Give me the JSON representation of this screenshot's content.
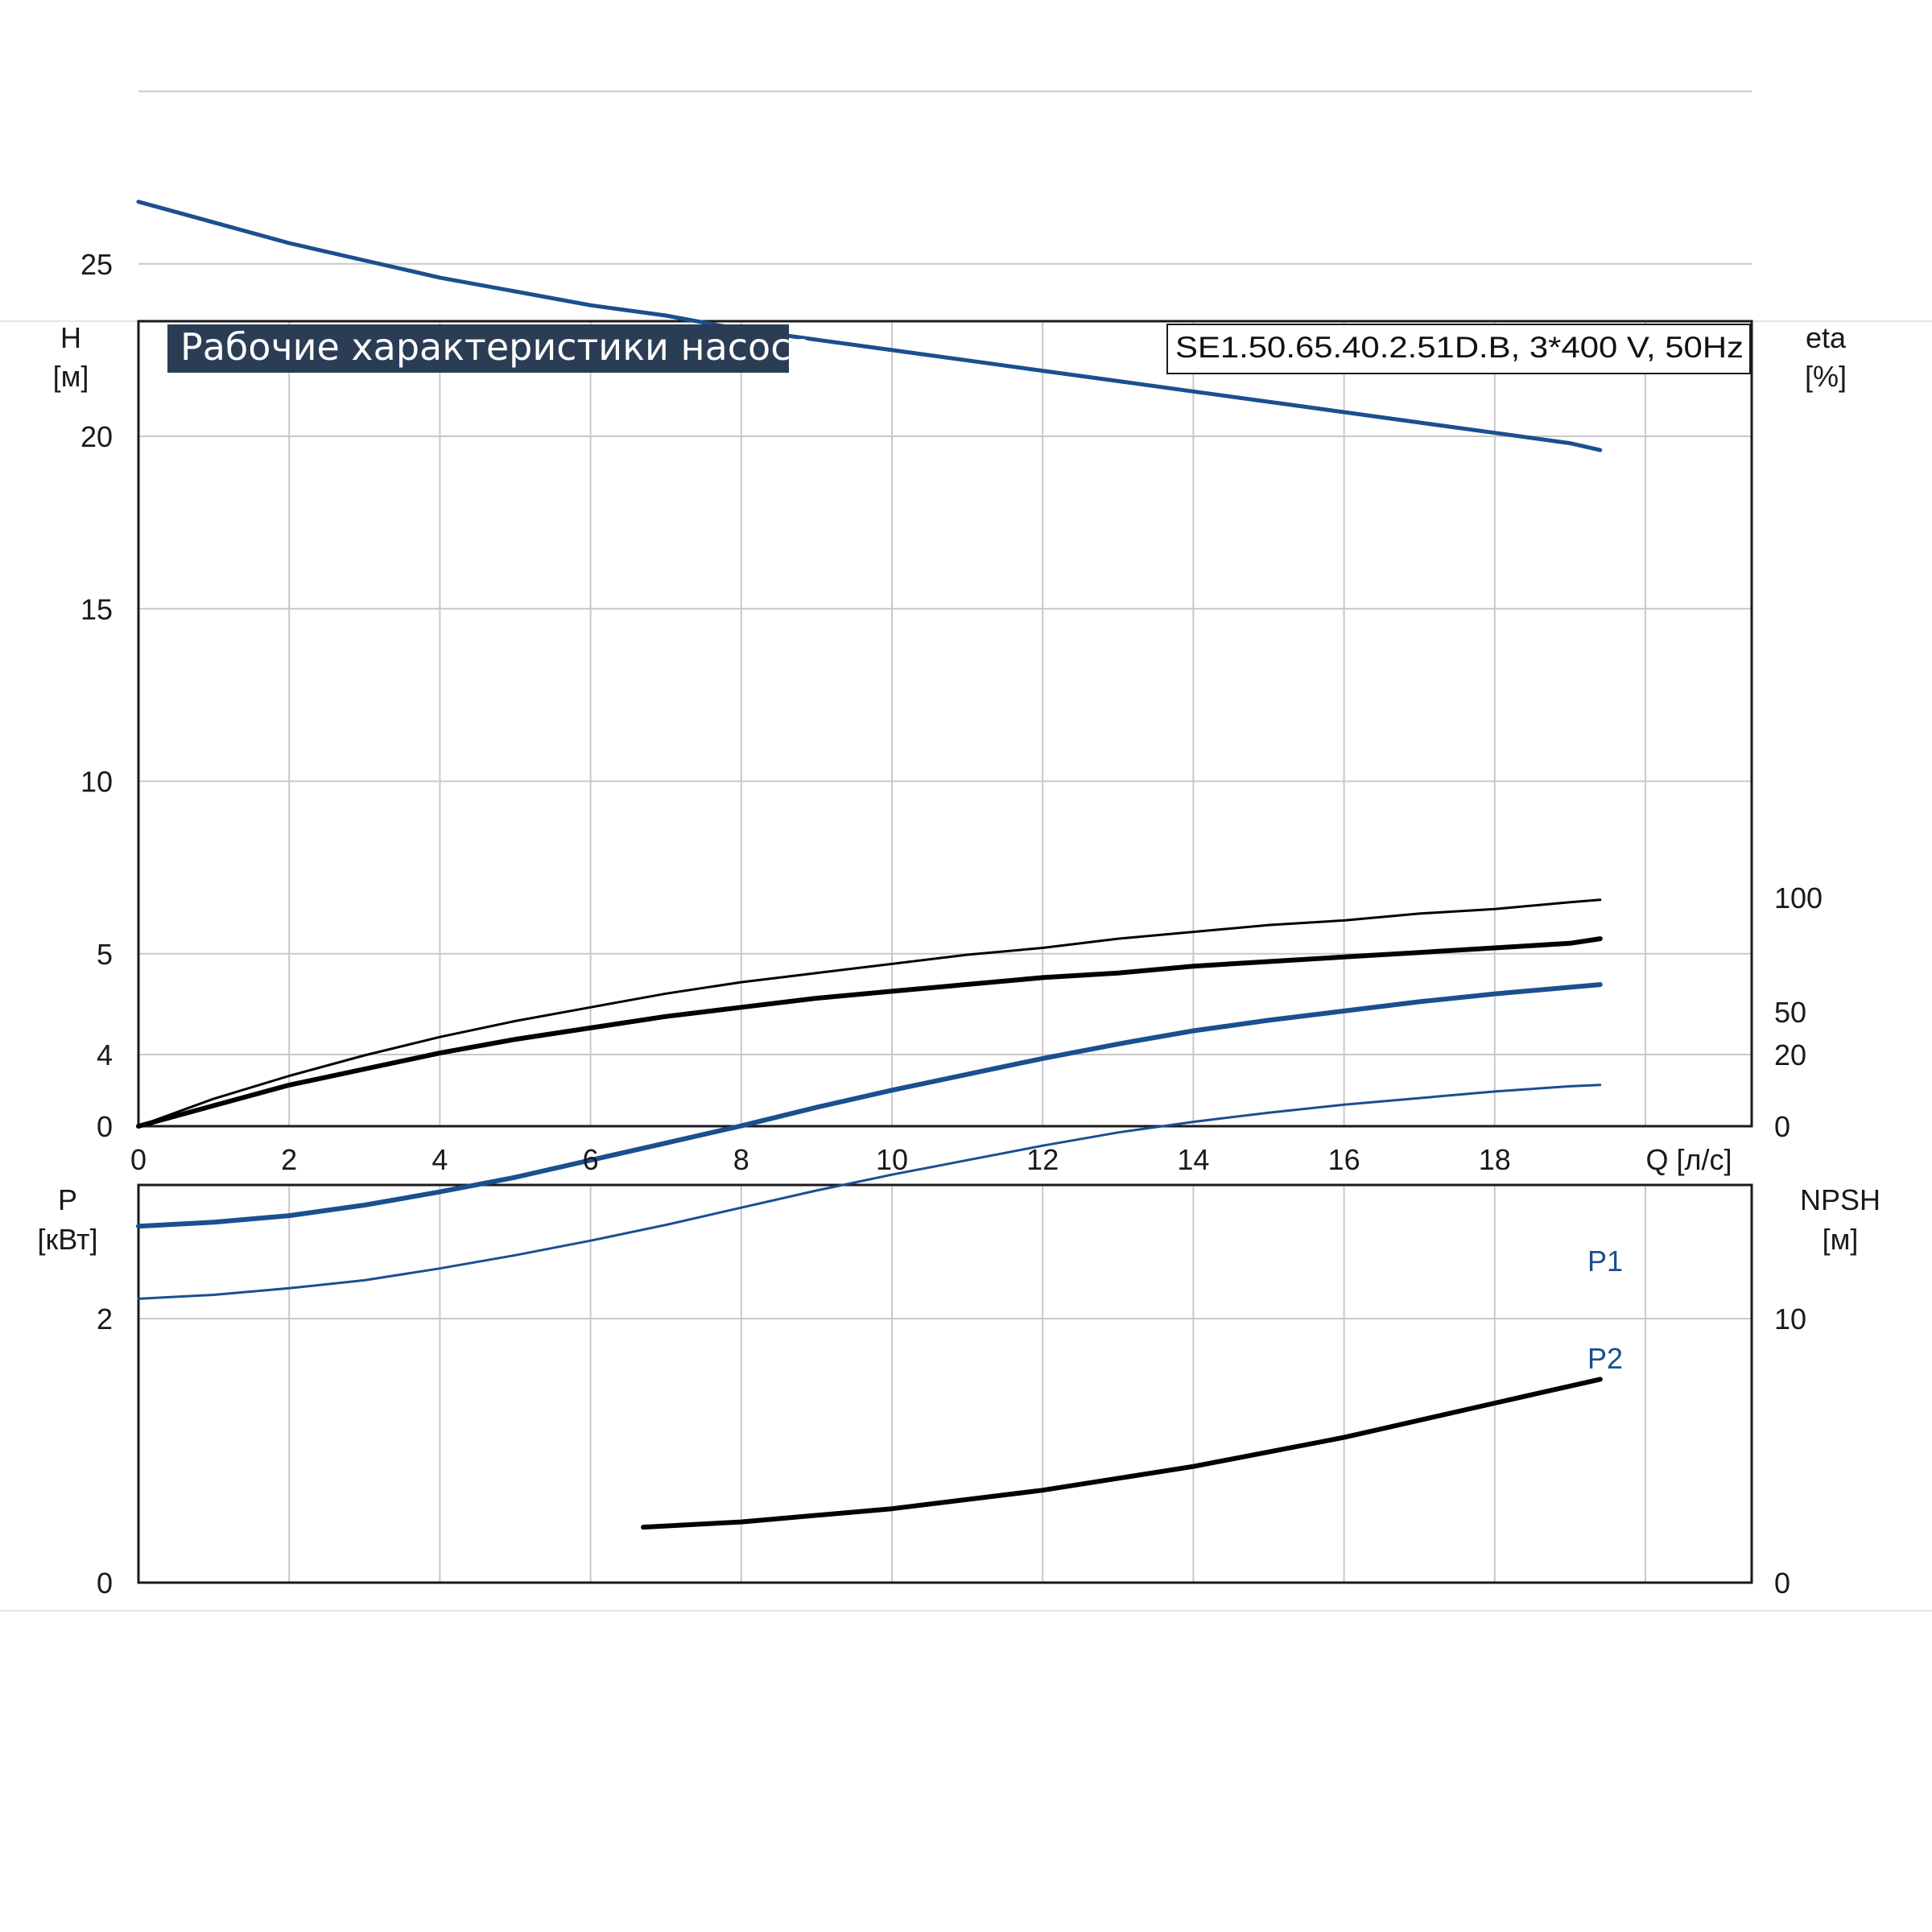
{
  "title": "Рабочие характеристики насоса",
  "model": "SE1.50.65.40.2.51D.B, 3*400 V, 50Hz",
  "colors": {
    "blue": "#1b4f8f",
    "black": "#000000",
    "grid": "#c8c8c8",
    "title_bg": "#2b3d55"
  },
  "chart_data": [
    {
      "type": "line",
      "name": "upper",
      "xlabel": "Q [л/с]",
      "ylabel_lines": [
        "H",
        "[м]"
      ],
      "y2label_lines": [
        "eta",
        "[%]"
      ],
      "xlim": [
        0,
        20
      ],
      "ylim": [
        0,
        30
      ],
      "y2lim": [
        0,
        300
      ],
      "xticks": [
        "0",
        "2",
        "4",
        "6",
        "8",
        "10",
        "12",
        "14",
        "16",
        "18"
      ],
      "yticks": [
        "0",
        "5",
        "10",
        "15",
        "20",
        "25"
      ],
      "y2ticks": [
        "0",
        "50",
        "100"
      ],
      "grid": true,
      "series": [
        {
          "color": "#1b4f8f",
          "width": 5,
          "axis": "y",
          "x": [
            0,
            1,
            2,
            3,
            4,
            5,
            6,
            7,
            8,
            9,
            10,
            11,
            12,
            13,
            14,
            15,
            16,
            17,
            18,
            19,
            19.4
          ],
          "y": [
            26.8,
            26.2,
            25.6,
            25.1,
            24.6,
            24.2,
            23.8,
            23.5,
            23.1,
            22.8,
            22.5,
            22.2,
            21.9,
            21.6,
            21.3,
            21.0,
            20.7,
            20.4,
            20.1,
            19.8,
            19.6
          ]
        },
        {
          "color": "#000000",
          "width": 3,
          "axis": "y2",
          "x": [
            0,
            1,
            2,
            3,
            4,
            5,
            6,
            7,
            8,
            9,
            10,
            11,
            12,
            13,
            14,
            15,
            16,
            17,
            18,
            19,
            19.4
          ],
          "y": [
            0,
            12,
            22,
            31,
            39,
            46,
            52,
            58,
            63,
            67,
            71,
            75,
            78,
            82,
            85,
            88,
            90,
            93,
            95,
            98,
            99
          ]
        },
        {
          "color": "#000000",
          "width": 6,
          "axis": "y2",
          "x": [
            0,
            1,
            2,
            3,
            4,
            5,
            6,
            7,
            8,
            9,
            10,
            11,
            12,
            13,
            14,
            15,
            16,
            17,
            18,
            19,
            19.4
          ],
          "y": [
            0,
            9,
            18,
            25,
            32,
            38,
            43,
            48,
            52,
            56,
            59,
            62,
            65,
            67,
            70,
            72,
            74,
            76,
            78,
            80,
            82
          ]
        }
      ]
    },
    {
      "type": "line",
      "name": "lower",
      "ylabel_lines": [
        "P",
        "[кВт]"
      ],
      "y2label_lines": [
        "NPSH",
        "[м]"
      ],
      "xlim": [
        0,
        20
      ],
      "ylim": [
        0,
        6
      ],
      "y2lim": [
        0,
        30
      ],
      "yticks": [
        "0",
        "2",
        "4"
      ],
      "y2ticks": [
        "0",
        "10",
        "20"
      ],
      "grid": true,
      "series": [
        {
          "name": "P1",
          "color": "#1b4f8f",
          "width": 6,
          "axis": "y",
          "x": [
            0,
            1,
            2,
            3,
            4,
            5,
            6,
            7,
            8,
            9,
            10,
            11,
            12,
            13,
            14,
            15,
            16,
            17,
            18,
            19,
            19.4
          ],
          "y": [
            2.7,
            2.73,
            2.78,
            2.86,
            2.96,
            3.07,
            3.2,
            3.33,
            3.46,
            3.6,
            3.73,
            3.85,
            3.97,
            4.08,
            4.18,
            4.26,
            4.33,
            4.4,
            4.46,
            4.51,
            4.53
          ]
        },
        {
          "name": "P2",
          "color": "#1b4f8f",
          "width": 3,
          "axis": "y",
          "x": [
            0,
            1,
            2,
            3,
            4,
            5,
            6,
            7,
            8,
            9,
            10,
            11,
            12,
            13,
            14,
            15,
            16,
            17,
            18,
            19,
            19.4
          ],
          "y": [
            2.15,
            2.18,
            2.23,
            2.29,
            2.38,
            2.48,
            2.59,
            2.71,
            2.84,
            2.97,
            3.09,
            3.2,
            3.31,
            3.41,
            3.49,
            3.56,
            3.62,
            3.67,
            3.72,
            3.76,
            3.77
          ]
        },
        {
          "name": "NPSH",
          "color": "#000000",
          "width": 6,
          "axis": "y2",
          "x": [
            6.7,
            8,
            10,
            12,
            14,
            16,
            18,
            19.4
          ],
          "y": [
            2.1,
            2.3,
            2.8,
            3.5,
            4.4,
            5.5,
            6.8,
            7.7
          ]
        }
      ]
    }
  ]
}
